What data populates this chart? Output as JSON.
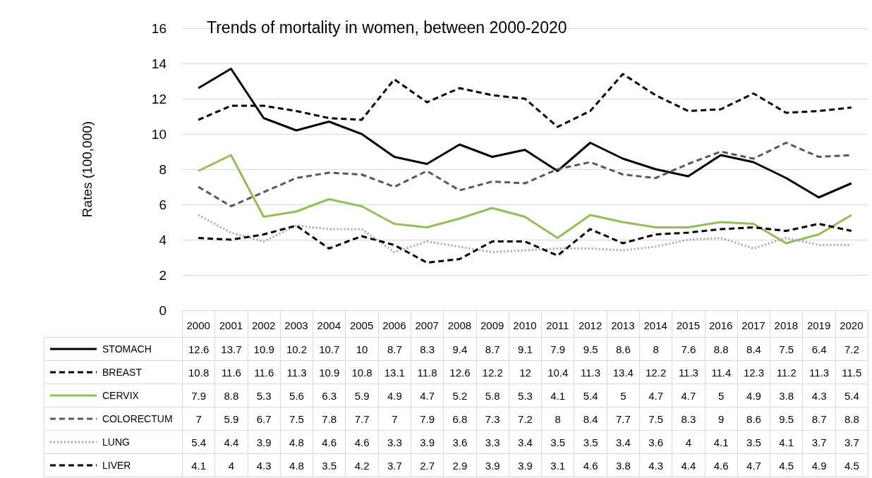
{
  "chart_data": {
    "type": "line",
    "title": "Trends of mortality in women, between 2000-2020",
    "ylabel": "Rates (100,000)",
    "categories": [
      "2000",
      "2001",
      "2002",
      "2003",
      "2004",
      "2005",
      "2006",
      "2007",
      "2008",
      "2009",
      "2010",
      "2011",
      "2012",
      "2013",
      "2014",
      "2015",
      "2016",
      "2017",
      "2018",
      "2019",
      "2020"
    ],
    "series": [
      {
        "name": "STOMACH",
        "color": "#000000",
        "line_style": "solid",
        "values": [
          12.6,
          13.7,
          10.9,
          10.2,
          10.7,
          10,
          8.7,
          8.3,
          9.4,
          8.7,
          9.1,
          7.9,
          9.5,
          8.6,
          8,
          7.6,
          8.8,
          8.4,
          7.5,
          6.4,
          7.2
        ]
      },
      {
        "name": "BREAST",
        "color": "#000000",
        "line_style": "dashed",
        "values": [
          10.8,
          11.6,
          11.6,
          11.3,
          10.9,
          10.8,
          13.1,
          11.8,
          12.6,
          12.2,
          12,
          10.4,
          11.3,
          13.4,
          12.2,
          11.3,
          11.4,
          12.3,
          11.2,
          11.3,
          11.5
        ]
      },
      {
        "name": "CERVIX",
        "color": "#92bd58",
        "line_style": "solid",
        "values": [
          7.9,
          8.8,
          5.3,
          5.6,
          6.3,
          5.9,
          4.9,
          4.7,
          5.2,
          5.8,
          5.3,
          4.1,
          5.4,
          5,
          4.7,
          4.7,
          5,
          4.9,
          3.8,
          4.3,
          5.4
        ]
      },
      {
        "name": "COLORECTUM",
        "color": "#595959",
        "line_style": "dashed",
        "values": [
          7,
          5.9,
          6.7,
          7.5,
          7.8,
          7.7,
          7,
          7.9,
          6.8,
          7.3,
          7.2,
          8,
          8.4,
          7.7,
          7.5,
          8.3,
          9,
          8.6,
          9.5,
          8.7,
          8.8
        ]
      },
      {
        "name": "LUNG",
        "color": "#a6a6a6",
        "line_style": "dotted",
        "values": [
          5.4,
          4.4,
          3.9,
          4.8,
          4.6,
          4.6,
          3.3,
          3.9,
          3.6,
          3.3,
          3.4,
          3.5,
          3.5,
          3.4,
          3.6,
          4,
          4.1,
          3.5,
          4.1,
          3.7,
          3.7
        ]
      },
      {
        "name": "LIVER",
        "color": "#000000",
        "line_style": "dashed",
        "values": [
          4.1,
          4,
          4.3,
          4.8,
          3.5,
          4.2,
          3.7,
          2.7,
          2.9,
          3.9,
          3.9,
          3.1,
          4.6,
          3.8,
          4.3,
          4.4,
          4.6,
          4.7,
          4.5,
          4.9,
          4.5
        ]
      }
    ],
    "ylim": [
      0,
      16
    ],
    "yticks": [
      0,
      2,
      4,
      6,
      8,
      10,
      12,
      14,
      16
    ],
    "grid": "y",
    "marker": "none",
    "legend": "bottom",
    "data_labels": true
  }
}
